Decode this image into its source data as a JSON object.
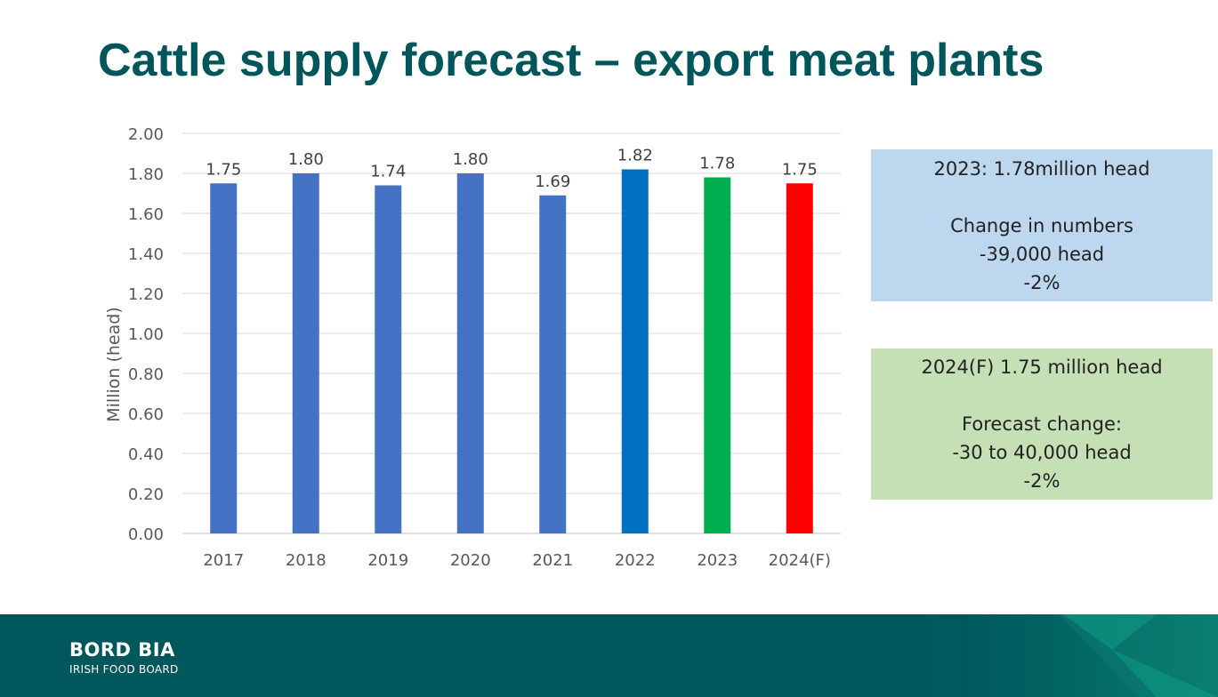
{
  "slide": {
    "title": "Cattle supply forecast – export meat plants"
  },
  "chart_data": {
    "type": "bar",
    "title": "",
    "xlabel": "",
    "ylabel": "Million (head)",
    "ylim": [
      0,
      2.0
    ],
    "yticks": [
      "0.00",
      "0.20",
      "0.40",
      "0.60",
      "0.80",
      "1.00",
      "1.20",
      "1.40",
      "1.60",
      "1.80",
      "2.00"
    ],
    "categories": [
      "2017",
      "2018",
      "2019",
      "2020",
      "2021",
      "2022",
      "2023",
      "2024(F)"
    ],
    "values": [
      1.75,
      1.8,
      1.74,
      1.8,
      1.69,
      1.82,
      1.78,
      1.75
    ],
    "data_labels": [
      "1.75",
      "1.80",
      "1.74",
      "1.80",
      "1.69",
      "1.82",
      "1.78",
      "1.75"
    ],
    "bar_colors": [
      "#4472c4",
      "#4472c4",
      "#4472c4",
      "#4472c4",
      "#4472c4",
      "#0070c0",
      "#00b050",
      "#ff0000"
    ],
    "grid": true
  },
  "boxes": {
    "box_2023": {
      "line1": "2023: 1.78million head",
      "line2": "Change in numbers",
      "line3": "-39,000 head",
      "line4": "-2%",
      "color": "#bdd7ee"
    },
    "box_2024": {
      "line1": "2024(F) 1.75 million head",
      "line2": "Forecast change:",
      "line3": "-30 to 40,000 head",
      "line4": "-2%",
      "color": "#c5e0b4"
    }
  },
  "footer": {
    "logo_main": "BORD BIA",
    "logo_sub": "IRISH FOOD BOARD",
    "color": "#00585c"
  }
}
